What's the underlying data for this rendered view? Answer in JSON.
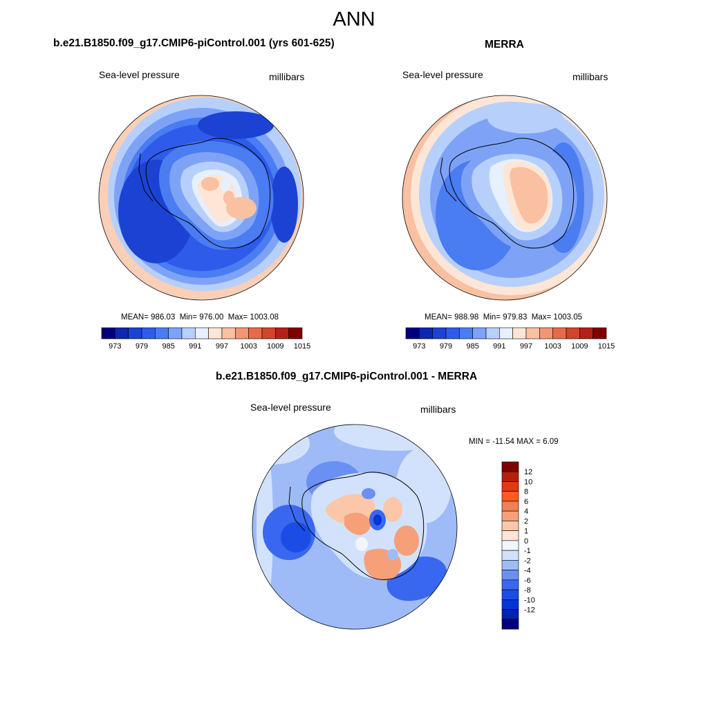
{
  "page_title": "ANN",
  "colors": {
    "scale_abs": [
      "#00007f",
      "#0e26b0",
      "#1c42d4",
      "#2e5bea",
      "#4a7cf2",
      "#7ea3f6",
      "#b7d0fb",
      "#e6f0ff",
      "#fde6d6",
      "#f9c0a2",
      "#f39675",
      "#e86a4a",
      "#d2442b",
      "#b3201a",
      "#800000"
    ],
    "scale_diff": [
      "#00007f",
      "#0020b0",
      "#0535d6",
      "#1b4de6",
      "#3a67ef",
      "#6a90f4",
      "#9ebbf8",
      "#d3e2fc",
      "#f1f5ff",
      "#fde6d6",
      "#fbc7a8",
      "#f6a079",
      "#f27f55",
      "#ff5a20",
      "#df3a10",
      "#b3200f",
      "#800000"
    ],
    "land": "#000000"
  },
  "panels": {
    "model": {
      "title": "b.e21.B1850.f09_g17.CMIP6-piControl.001 (yrs 601-625)",
      "left_label": "Sea-level pressure",
      "right_label": "millibars",
      "mean_label": "MEAN=",
      "mean": "986.03",
      "min_label": "Min=",
      "min": "976.00",
      "max_label": "Max=",
      "max": "1003.08"
    },
    "obs": {
      "title": "MERRA",
      "left_label": "Sea-level pressure",
      "right_label": "millibars",
      "mean_label": "MEAN=",
      "mean": "988.98",
      "min_label": "Min=",
      "min": "979.83",
      "max_label": "Max=",
      "max": "1003.05"
    },
    "diff": {
      "title": "b.e21.B1850.f09_g17.CMIP6-piControl.001 - MERRA",
      "left_label": "Sea-level pressure",
      "right_label": "millibars",
      "minmax_text": "MIN = -11.54 MAX =   6.09"
    }
  },
  "chart_data": [
    {
      "type": "heatmap",
      "title": "b.e21.B1850.f09_g17.CMIP6-piControl.001 (yrs 601-625)",
      "variable": "Sea-level pressure",
      "units": "millibars",
      "projection": "south polar stereographic",
      "mean": 986.03,
      "min": 976.0,
      "max": 1003.08,
      "colorbar_ticks": [
        973,
        979,
        985,
        991,
        997,
        1003,
        1009,
        1015
      ],
      "colorbar_levels": [
        970,
        973,
        976,
        979,
        982,
        985,
        988,
        991,
        994,
        997,
        1000,
        1003,
        1006,
        1009,
        1012,
        1015
      ]
    },
    {
      "type": "heatmap",
      "title": "MERRA",
      "variable": "Sea-level pressure",
      "units": "millibars",
      "projection": "south polar stereographic",
      "mean": 988.98,
      "min": 979.83,
      "max": 1003.05,
      "colorbar_ticks": [
        973,
        979,
        985,
        991,
        997,
        1003,
        1009,
        1015
      ],
      "colorbar_levels": [
        970,
        973,
        976,
        979,
        982,
        985,
        988,
        991,
        994,
        997,
        1000,
        1003,
        1006,
        1009,
        1012,
        1015
      ]
    },
    {
      "type": "heatmap",
      "title": "b.e21.B1850.f09_g17.CMIP6-piControl.001 - MERRA",
      "variable": "Sea-level pressure",
      "units": "millibars",
      "projection": "south polar stereographic",
      "min": -11.54,
      "max": 6.09,
      "colorbar_ticks": [
        12,
        10,
        8,
        6,
        4,
        2,
        1,
        0,
        -1,
        -2,
        -4,
        -6,
        -8,
        -10,
        -12
      ]
    }
  ]
}
